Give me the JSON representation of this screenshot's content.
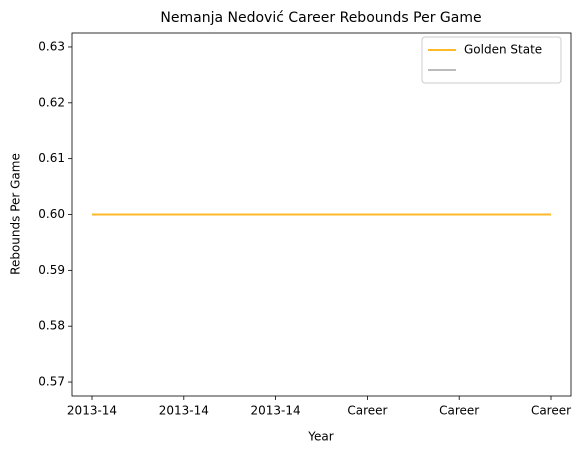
{
  "chart_data": {
    "type": "line",
    "title": "Nemanja Nedović Career Rebounds Per Game",
    "x_label": "Year",
    "y_label": "Rebounds Per Game",
    "categories": [
      "2013-14",
      "2013-14",
      "2013-14",
      "Career",
      "Career",
      "Career"
    ],
    "series": [
      {
        "name": "Golden State",
        "color": "#fdb927",
        "values": [
          0.6,
          0.6,
          0.6,
          0.6,
          0.6,
          0.6
        ]
      },
      {
        "color": "#bbbbbb",
        "values": [
          null,
          null,
          null,
          0.6,
          0.6,
          0.6
        ]
      }
    ],
    "ylim": [
      0.5675,
      0.6325
    ],
    "yticks": [
      0.57,
      0.58,
      0.59,
      {
        "value": 0.6,
        "label": "0.60"
      },
      0.61,
      0.62,
      0.63
    ],
    "grid": false,
    "legend": "upper right"
  }
}
